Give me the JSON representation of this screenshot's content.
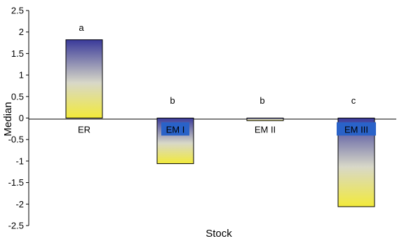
{
  "chart_data": {
    "type": "bar",
    "categories": [
      "ER",
      "EM I",
      "EM II",
      "EM III"
    ],
    "values": [
      1.82,
      -1.06,
      -0.06,
      -2.06
    ],
    "significance_letters": [
      "a",
      "b",
      "b",
      "c"
    ],
    "xlabel": "Stock",
    "ylabel": "Median",
    "ylim": [
      -2.5,
      2.5
    ],
    "yticks": [
      "2.5",
      "2",
      "1.5",
      "1",
      "0.5",
      "0",
      "-0.5",
      "-1",
      "-1.5",
      "-2",
      "-2.5"
    ],
    "grid": false,
    "legend": "none",
    "colors": {
      "bar_top": "#3a3a9a",
      "bar_mid": "#d8d8c8",
      "bar_bottom": "#f2ea3a",
      "label_box": "#2a62c8"
    }
  }
}
